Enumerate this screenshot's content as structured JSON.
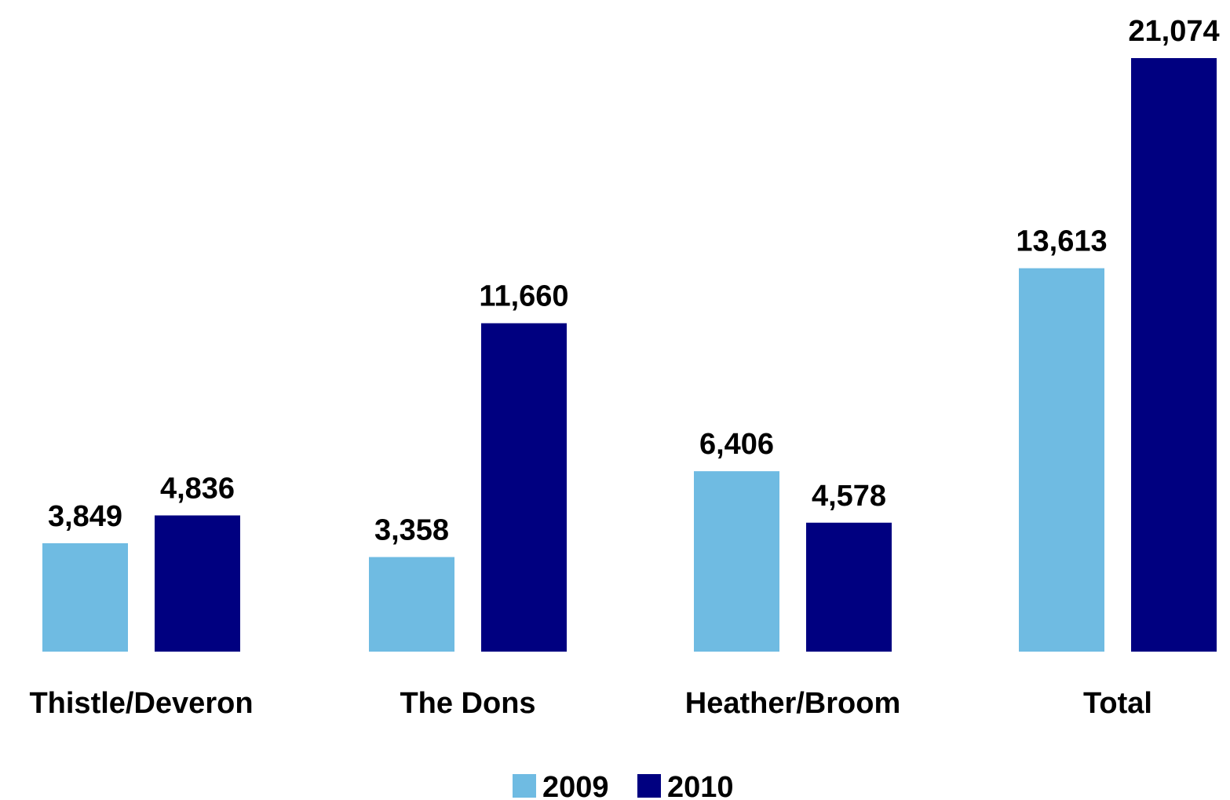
{
  "chart_data": {
    "type": "bar",
    "title": "",
    "xlabel": "",
    "ylabel": "",
    "categories": [
      "Thistle/Deveron",
      "The Dons",
      "Heather/Broom",
      "Total"
    ],
    "series": [
      {
        "name": "2009",
        "values": [
          3849,
          3358,
          6406,
          13613
        ],
        "labels": [
          "3,849",
          "3,358",
          "6,406",
          "13,613"
        ],
        "color": "#6fbbe2"
      },
      {
        "name": "2010",
        "values": [
          4836,
          11660,
          4578,
          21074
        ],
        "labels": [
          "4,836",
          "11,660",
          "4,578",
          "21,074"
        ],
        "color": "#000080"
      }
    ],
    "ylim": [
      0,
      21074
    ],
    "grid": false,
    "legend": "bottom-center"
  }
}
